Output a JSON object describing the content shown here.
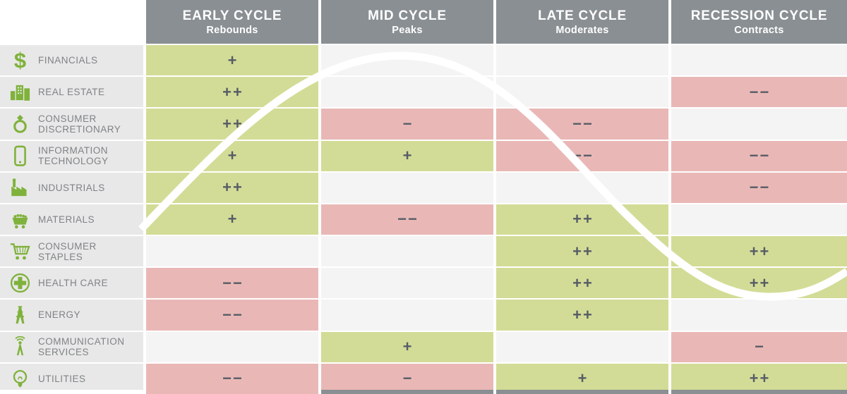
{
  "chart_data": {
    "type": "table",
    "description": "Sector performance by business cycle phase with overlaid business-cycle sine wave",
    "columns": [
      {
        "label": "EARLY CYCLE",
        "sublabel": "Rebounds"
      },
      {
        "label": "MID CYCLE",
        "sublabel": "Peaks"
      },
      {
        "label": "LATE CYCLE",
        "sublabel": "Moderates"
      },
      {
        "label": "RECESSION CYCLE",
        "sublabel": "Contracts"
      }
    ],
    "rows": [
      {
        "sector": "FINANCIALS",
        "icon": "dollar-icon",
        "values": [
          "+",
          "",
          "",
          ""
        ]
      },
      {
        "sector": "REAL ESTATE",
        "icon": "buildings-icon",
        "values": [
          "++",
          "",
          "",
          "−−"
        ]
      },
      {
        "sector": "CONSUMER DISCRETIONARY",
        "icon": "ring-icon",
        "values": [
          "++",
          "−",
          "−−",
          ""
        ]
      },
      {
        "sector": "INFORMATION TECHNOLOGY",
        "icon": "smartphone-icon",
        "values": [
          "+",
          "+",
          "−−",
          "−−"
        ]
      },
      {
        "sector": "INDUSTRIALS",
        "icon": "factory-icon",
        "values": [
          "++",
          "",
          "",
          "−−"
        ]
      },
      {
        "sector": "MATERIALS",
        "icon": "materials-cart-icon",
        "values": [
          "+",
          "−−",
          "++",
          ""
        ]
      },
      {
        "sector": "CONSUMER STAPLES",
        "icon": "shopping-cart-icon",
        "values": [
          "",
          "",
          "++",
          "++"
        ]
      },
      {
        "sector": "HEALTH CARE",
        "icon": "health-cross-icon",
        "values": [
          "−−",
          "",
          "++",
          "++"
        ]
      },
      {
        "sector": "ENERGY",
        "icon": "oil-derrick-icon",
        "values": [
          "−−",
          "",
          "++",
          ""
        ]
      },
      {
        "sector": "COMMUNICATION SERVICES",
        "icon": "radio-tower-icon",
        "values": [
          "",
          "+",
          "",
          "−"
        ]
      },
      {
        "sector": "UTILITIES",
        "icon": "lightbulb-icon",
        "values": [
          "−−",
          "−",
          "+",
          "++"
        ]
      }
    ],
    "overlay": "business-cycle-sine-wave",
    "legend": {
      "positive": "+ / ++ favorable",
      "negative": "− / −− unfavorable"
    }
  },
  "colors": {
    "positive_cell": "#d3dc96",
    "negative_cell": "#e9b8b6",
    "neutral_cell": "#f4f4f4",
    "header_bg": "#8a8f93",
    "label_bg": "#e8e8e8",
    "label_text": "#7f8285",
    "symbol_color": "#565d67",
    "icon_green": "#7fb23c",
    "curve_color": "#ffffff"
  }
}
